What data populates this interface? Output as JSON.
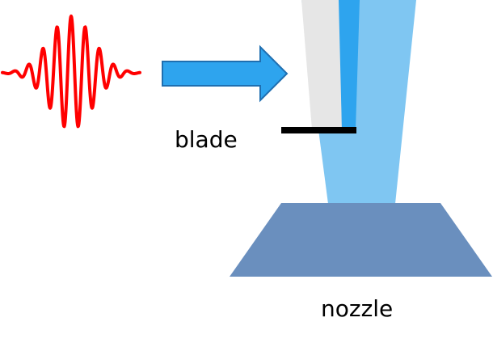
{
  "labels": {
    "blade": "blade",
    "nozzle": "nozzle"
  },
  "icons": {
    "pulse": "laser-pulse-icon",
    "arrow": "right-arrow-icon"
  },
  "colors": {
    "pulse": "#ff0000",
    "arrow_fill": "#2ea4ee",
    "arrow_stroke": "#1f6fb0",
    "beam": "#7fc6f2",
    "shadow_region": "#e6e6e6",
    "blade_edge_strip": "#2ea4ee",
    "blade": "#000000",
    "nozzle": "#6a8fbe"
  }
}
